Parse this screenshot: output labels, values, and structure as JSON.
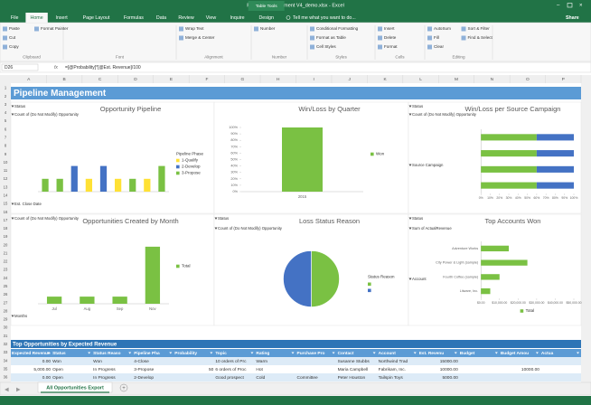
{
  "title_bar": {
    "title": "Pipeline Management V4_demo.xlsx - Excel",
    "context": "Table Tools"
  },
  "tabs": [
    "File",
    "Home",
    "Insert",
    "Page Layout",
    "Formulas",
    "Data",
    "Review",
    "View",
    "Inquire",
    "Design"
  ],
  "tell_me": "Tell me what you want to do...",
  "share": "Share",
  "ribbon": [
    {
      "label": "Clipboard",
      "buttons": [
        "Paste",
        "Cut",
        "Copy",
        "Format Painter"
      ]
    },
    {
      "label": "Font",
      "buttons": []
    },
    {
      "label": "Alignment",
      "buttons": [
        "Wrap Text",
        "Merge & Center"
      ]
    },
    {
      "label": "Number",
      "buttons": [
        "Number"
      ]
    },
    {
      "label": "Styles",
      "buttons": [
        "Conditional Formatting",
        "Format as Table",
        "Cell Styles"
      ]
    },
    {
      "label": "Cells",
      "buttons": [
        "Insert",
        "Delete",
        "Format"
      ]
    },
    {
      "label": "Editing",
      "buttons": [
        "AutoSum",
        "Fill",
        "Clear",
        "Sort & Filter",
        "Find & Select"
      ]
    }
  ],
  "formula_bar": {
    "name_box": "D26",
    "fx": "fx",
    "formula": "=[@Probability]*[@Est. Revenue]/100"
  },
  "columns": [
    "A",
    "B",
    "C",
    "D",
    "E",
    "F",
    "G",
    "H",
    "I",
    "J",
    "K",
    "L",
    "M",
    "N",
    "O",
    "P"
  ],
  "rows": [
    "1",
    "2",
    "3",
    "4",
    "5",
    "6",
    "7",
    "8",
    "9",
    "10",
    "11",
    "12",
    "13",
    "14",
    "15",
    "16",
    "17",
    "18",
    "19",
    "20",
    "21",
    "22",
    "23",
    "24",
    "25",
    "26",
    "27",
    "28",
    "29",
    "30",
    "31",
    "32",
    "33",
    "34",
    "35",
    "36"
  ],
  "sheet_title": "Pipeline Management",
  "chart_data": [
    {
      "type": "bar",
      "title": "Opportunity Pipeline",
      "buttons": [
        "Status",
        "Count of (Do Not Modify) Opportunity",
        "Est. Close Date"
      ],
      "legend_title": "Pipeline Phase",
      "categories": [
        null,
        null,
        null,
        null,
        null,
        null,
        null,
        null,
        null
      ],
      "ylim": [
        0,
        5
      ],
      "series": [
        {
          "name": "1-Qualify",
          "color": "#ffe135",
          "values": [
            null,
            null,
            null,
            1,
            null,
            1,
            null,
            1,
            null
          ]
        },
        {
          "name": "2-Develop",
          "color": "#4472c4",
          "values": [
            null,
            null,
            2,
            null,
            2,
            null,
            null,
            null,
            null
          ]
        },
        {
          "name": "3-Propose",
          "color": "#7ac143",
          "values": [
            1,
            1,
            null,
            null,
            null,
            null,
            1,
            null,
            2
          ]
        }
      ]
    },
    {
      "type": "bar",
      "title": "Win/Loss by Quarter",
      "buttons": [],
      "categories": [
        "2015"
      ],
      "ylim": [
        0,
        100
      ],
      "yticks": [
        {
          "value": 0,
          "label": "0%"
        },
        {
          "value": 10,
          "label": "10%"
        },
        {
          "value": 20,
          "label": "20%"
        },
        {
          "value": 30,
          "label": "30%"
        },
        {
          "value": 40,
          "label": "40%"
        },
        {
          "value": 50,
          "label": "50%"
        },
        {
          "value": 60,
          "label": "60%"
        },
        {
          "value": 70,
          "label": "70%"
        },
        {
          "value": 80,
          "label": "80%"
        },
        {
          "value": 90,
          "label": "90%"
        },
        {
          "value": 100,
          "label": "100%"
        }
      ],
      "series": [
        {
          "name": "Won",
          "color": "#7ac143",
          "values": [
            100
          ]
        }
      ]
    },
    {
      "type": "hbar",
      "title": "Win/Loss per Source Campaign",
      "buttons": [
        "Status",
        "Count of (Do Not Modify) Opportunity",
        "Source Campaign"
      ],
      "categories": [
        null,
        null,
        null,
        null
      ],
      "xlim": [
        0,
        100
      ],
      "xticks": [
        {
          "value": 0,
          "label": "0%"
        },
        {
          "value": 10,
          "label": "10%"
        },
        {
          "value": 20,
          "label": "20%"
        },
        {
          "value": 30,
          "label": "30%"
        },
        {
          "value": 40,
          "label": "40%"
        },
        {
          "value": 50,
          "label": "50%"
        },
        {
          "value": 60,
          "label": "60%"
        },
        {
          "value": 70,
          "label": "70%"
        },
        {
          "value": 80,
          "label": "80%"
        },
        {
          "value": 90,
          "label": "90%"
        },
        {
          "value": 100,
          "label": "100%"
        }
      ],
      "series": [
        {
          "color": "#7ac143",
          "values": [
            60,
            60,
            60,
            60
          ]
        },
        {
          "color": "#4472c4",
          "values": [
            40,
            40,
            40,
            40
          ]
        }
      ]
    },
    {
      "type": "bar",
      "title": "Opportunities Created by Month",
      "buttons": [
        "Count of (Do Not Modify) Opportunity",
        "Months"
      ],
      "categories": [
        "Jul",
        "Aug",
        "Sep",
        "Nov"
      ],
      "ylim": [
        0,
        9
      ],
      "series": [
        {
          "name": "Total",
          "color": "#7ac143",
          "values": [
            1,
            1,
            1,
            8
          ]
        }
      ]
    },
    {
      "type": "pie",
      "title": "Loss Status Reason",
      "buttons": [
        "Status",
        "Count of (Do Not Modify) Opportunity"
      ],
      "legend_title": "Status Reason",
      "values": [
        50,
        50
      ],
      "colors": [
        "#7ac143",
        "#4472c4"
      ]
    },
    {
      "type": "hbar",
      "title": "Top Accounts Won",
      "buttons": [
        "Status",
        "Sum of ActualRevenue",
        "Account"
      ],
      "categories": [
        "Adventure Works",
        "City Power & Light (sample)",
        "Fourth Coffee (sample)",
        "Litware, Inc."
      ],
      "xlim": [
        0,
        50000
      ],
      "xticks": [
        {
          "value": 0,
          "label": "$0.00"
        },
        {
          "value": 10000,
          "label": "$10,000.00"
        },
        {
          "value": 20000,
          "label": "$20,000.00"
        },
        {
          "value": 30000,
          "label": "$30,000.00"
        },
        {
          "value": 40000,
          "label": "$40,000.00"
        },
        {
          "value": 50000,
          "label": "$50,000.00"
        }
      ],
      "series": [
        {
          "name": "Total",
          "color": "#7ac143",
          "values": [
            15000,
            25000,
            10000,
            5000
          ]
        }
      ]
    }
  ],
  "table": {
    "title": "Top Opportunities by Expected Revenue",
    "headers": [
      "Expected Revenue",
      "Status",
      "Status Reaso",
      "Pipeline Pha",
      "Probability",
      "Topic",
      "Rating",
      "Purchase Pro",
      "Contact",
      "Account",
      "Est. Revenu",
      "Budget",
      "Budget Amou",
      "Actua"
    ],
    "rows": [
      [
        "0.00",
        "Won",
        "Won",
        "4-Close",
        null,
        "10 orders of Prc",
        "Warm",
        null,
        "Susanne Stubbs",
        "Northwind Trad",
        "15000.00",
        null,
        null,
        null
      ],
      [
        "5,000.00",
        "Open",
        "In Progress",
        "3-Propose",
        "50",
        "6 orders of Proc",
        "Hot",
        null,
        "Maria Campbell",
        "Fabrikam, Inc.",
        "10000.00",
        null,
        "10000.00",
        null
      ],
      [
        "0.00",
        "Open",
        "In Progress",
        "2-Develop",
        null,
        "Good prospect",
        "Cold",
        "Committee",
        "Peter Houston",
        "Tailspin Toys",
        "5000.00",
        null,
        null,
        null
      ]
    ]
  },
  "sheet_tab": "All Opportunities Export"
}
